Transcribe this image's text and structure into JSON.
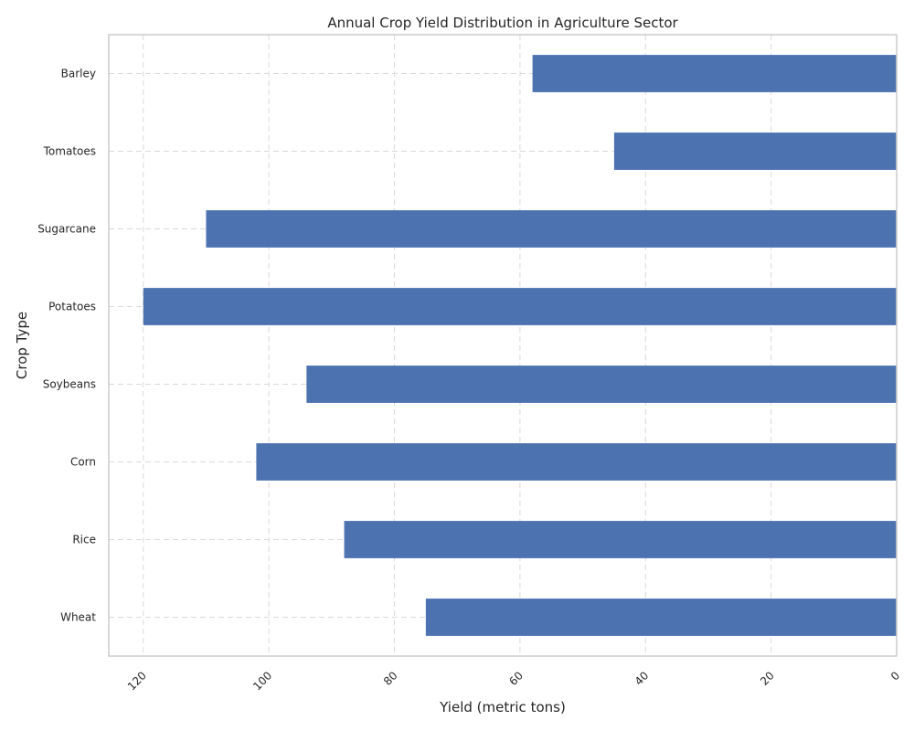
{
  "chart_data": {
    "type": "bar",
    "orientation": "horizontal",
    "title": "Annual Crop Yield Distribution in Agriculture Sector",
    "xlabel": "Yield (metric tons)",
    "ylabel": "Crop Type",
    "categories": [
      "Wheat",
      "Rice",
      "Corn",
      "Soybeans",
      "Potatoes",
      "Sugarcane",
      "Tomatoes",
      "Barley"
    ],
    "values": [
      75,
      88,
      102,
      94,
      120,
      110,
      45,
      58
    ],
    "xlim": [
      125.5,
      0
    ],
    "x_inverted": true,
    "x_ticks": [
      120,
      100,
      80,
      60,
      40,
      20,
      0
    ],
    "x_tick_labels": [
      "120",
      "100",
      "80",
      "60",
      "40",
      "20",
      "0"
    ],
    "x_tick_rotation": 45,
    "grid": true,
    "bar_color": "#4c72b0"
  }
}
